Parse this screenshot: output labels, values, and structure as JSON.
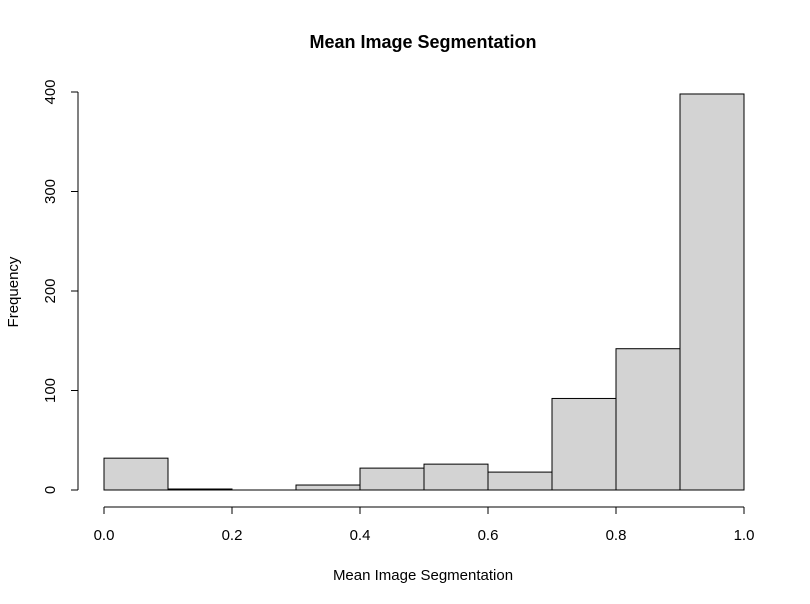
{
  "chart_data": {
    "type": "bar",
    "title": "Mean Image Segmentation",
    "xlabel": "Mean Image Segmentation",
    "ylabel": "Frequency",
    "bins": [
      {
        "from": 0.0,
        "to": 0.1,
        "count": 32
      },
      {
        "from": 0.1,
        "to": 0.2,
        "count": 1
      },
      {
        "from": 0.2,
        "to": 0.3,
        "count": 0
      },
      {
        "from": 0.3,
        "to": 0.4,
        "count": 5
      },
      {
        "from": 0.4,
        "to": 0.5,
        "count": 22
      },
      {
        "from": 0.5,
        "to": 0.6,
        "count": 26
      },
      {
        "from": 0.6,
        "to": 0.7,
        "count": 18
      },
      {
        "from": 0.7,
        "to": 0.8,
        "count": 92
      },
      {
        "from": 0.8,
        "to": 0.9,
        "count": 142
      },
      {
        "from": 0.9,
        "to": 1.0,
        "count": 398
      }
    ],
    "xlim": [
      0,
      1
    ],
    "ylim": [
      0,
      400
    ],
    "x_ticks": [
      "0.0",
      "0.2",
      "0.4",
      "0.6",
      "0.8",
      "1.0"
    ],
    "y_ticks": [
      "0",
      "100",
      "200",
      "300",
      "400"
    ],
    "bar_fill": "#d3d3d3",
    "bar_stroke": "#000000",
    "grid": false,
    "legend": "none"
  }
}
